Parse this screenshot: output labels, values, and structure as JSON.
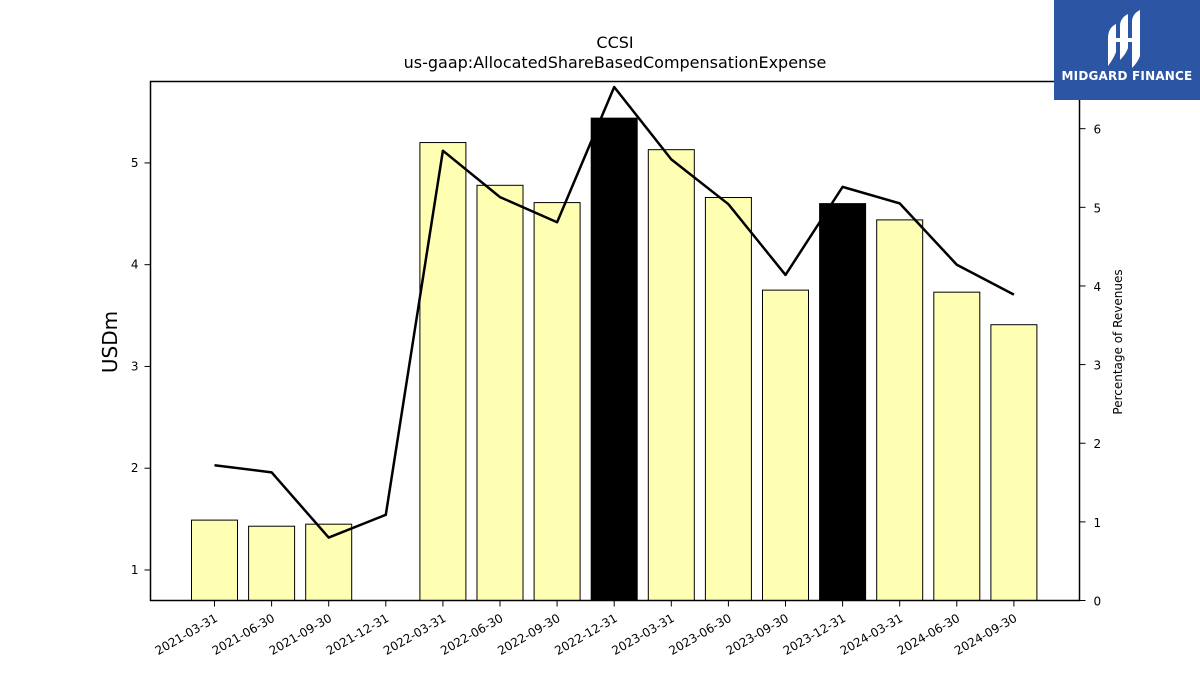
{
  "chart_data": {
    "type": "bar",
    "title": "CCSI",
    "subtitle": "us-gaap:AllocatedShareBasedCompensationExpense",
    "ylabel": "USDm",
    "y2label": "Percentage of Revenues",
    "categories": [
      "2021-03-31",
      "2021-06-30",
      "2021-09-30",
      "2021-12-31",
      "2022-03-31",
      "2022-06-30",
      "2022-09-30",
      "2022-12-31",
      "2023-03-31",
      "2023-06-30",
      "2023-09-30",
      "2023-12-31",
      "2024-03-31",
      "2024-06-30",
      "2024-09-30"
    ],
    "series": [
      {
        "type": "bar",
        "axis": "left",
        "values": [
          1.49,
          1.43,
          1.45,
          null,
          5.2,
          4.78,
          4.61,
          5.44,
          5.13,
          4.66,
          3.75,
          4.6,
          4.44,
          3.73,
          3.41
        ],
        "highlight": [
          false,
          false,
          false,
          false,
          false,
          false,
          false,
          true,
          false,
          false,
          false,
          true,
          false,
          false,
          false
        ],
        "color": "#ffffb3",
        "highlight_color": "#000000"
      },
      {
        "type": "line",
        "axis": "right",
        "values": [
          1.72,
          1.63,
          0.8,
          1.09,
          5.72,
          5.13,
          4.81,
          6.53,
          5.61,
          5.04,
          4.14,
          5.26,
          5.05,
          4.27,
          3.89
        ],
        "color": "#000000"
      }
    ],
    "ylim": [
      0.7,
      5.8
    ],
    "yticks": [
      1,
      2,
      3,
      4,
      5
    ],
    "y2lim": [
      0,
      6.6
    ],
    "y2ticks": [
      0,
      1,
      2,
      3,
      4,
      5,
      6
    ],
    "grid": false
  },
  "logo": {
    "text": "MIDGARD FINANCE",
    "color": "#2c55a4"
  }
}
